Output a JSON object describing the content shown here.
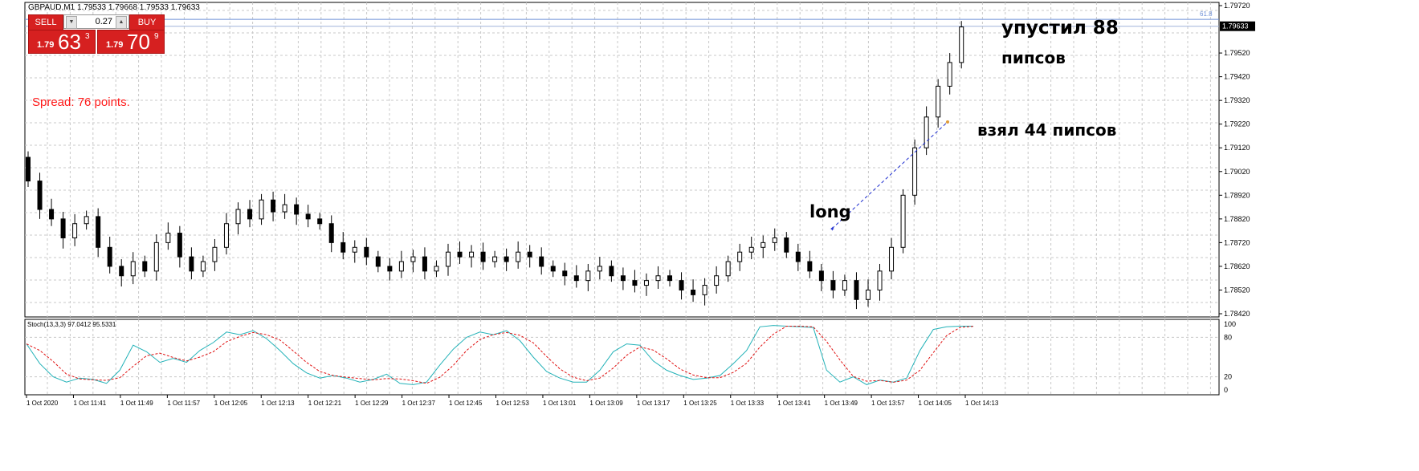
{
  "header": {
    "symbol_line": "GBPAUD,M1  1.79533 1.79668 1.79533 1.79633"
  },
  "trade_panel": {
    "sell_label": "SELL",
    "buy_label": "BUY",
    "lot_value": "0.27",
    "sell_price": {
      "small": "1.79",
      "big": "63",
      "sup": "3"
    },
    "buy_price": {
      "small": "1.79",
      "big": "70",
      "sup": "9"
    },
    "accent_color": "#d62020"
  },
  "spread_text": "Spread: 76 points.",
  "annotations": {
    "lost": "упустил 88",
    "lost2": "пипсов",
    "took": "взял 44 пипсов",
    "long": "long"
  },
  "fib_label": "61.8",
  "current_price_label": "1.79633",
  "price_axis": [
    "1.79720",
    "1.79520",
    "1.79420",
    "1.79320",
    "1.79220",
    "1.79120",
    "1.79020",
    "1.78920",
    "1.78820",
    "1.78720",
    "1.78620",
    "1.78520",
    "1.78420"
  ],
  "stoch": {
    "label": "Stoch(13,3,3) 97.0412 95.5331",
    "levels": [
      "100",
      "80",
      "20",
      "0"
    ]
  },
  "time_axis": [
    "1 Oct 2020",
    "1 Oct 11:41",
    "1 Oct 11:49",
    "1 Oct 11:57",
    "1 Oct 12:05",
    "1 Oct 12:13",
    "1 Oct 12:21",
    "1 Oct 12:29",
    "1 Oct 12:37",
    "1 Oct 12:45",
    "1 Oct 12:53",
    "1 Oct 13:01",
    "1 Oct 13:09",
    "1 Oct 13:17",
    "1 Oct 13:25",
    "1 Oct 13:33",
    "1 Oct 13:41",
    "1 Oct 13:49",
    "1 Oct 13:57",
    "1 Oct 14:05",
    "1 Oct 14:13"
  ],
  "chart_data": {
    "type": "candlestick",
    "closes": [
      1.7898,
      1.7886,
      1.7882,
      1.7874,
      1.788,
      1.7883,
      1.787,
      1.7862,
      1.7858,
      1.7864,
      1.786,
      1.7872,
      1.7876,
      1.7866,
      1.786,
      1.7864,
      1.787,
      1.788,
      1.7886,
      1.7882,
      1.789,
      1.7885,
      1.7888,
      1.7884,
      1.7882,
      1.788,
      1.7872,
      1.7868,
      1.787,
      1.7866,
      1.7862,
      1.786,
      1.7864,
      1.7866,
      1.786,
      1.7862,
      1.7868,
      1.7866,
      1.7868,
      1.7864,
      1.7866,
      1.7864,
      1.7868,
      1.7866,
      1.7862,
      1.786,
      1.7858,
      1.7856,
      1.786,
      1.7862,
      1.7858,
      1.7856,
      1.7854,
      1.7856,
      1.7858,
      1.7856,
      1.7852,
      1.785,
      1.7854,
      1.7858,
      1.7864,
      1.7868,
      1.787,
      1.7872,
      1.7874,
      1.7868,
      1.7864,
      1.786,
      1.7856,
      1.7852,
      1.7856,
      1.7848,
      1.7852,
      1.786,
      1.787,
      1.7892,
      1.7912,
      1.7925,
      1.7938,
      1.7948,
      1.7963
    ],
    "stoch_main": [
      70,
      40,
      20,
      12,
      18,
      16,
      10,
      30,
      68,
      58,
      42,
      48,
      42,
      60,
      72,
      88,
      84,
      90,
      78,
      60,
      40,
      26,
      18,
      22,
      18,
      12,
      16,
      24,
      10,
      8,
      12,
      38,
      62,
      80,
      88,
      84,
      90,
      75,
      50,
      28,
      18,
      12,
      12,
      30,
      58,
      70,
      68,
      44,
      30,
      22,
      16,
      18,
      22,
      40,
      60,
      96,
      98,
      97,
      96,
      95,
      30,
      12,
      20,
      8,
      15,
      12,
      18,
      60,
      92,
      96,
      97,
      97
    ]
  }
}
